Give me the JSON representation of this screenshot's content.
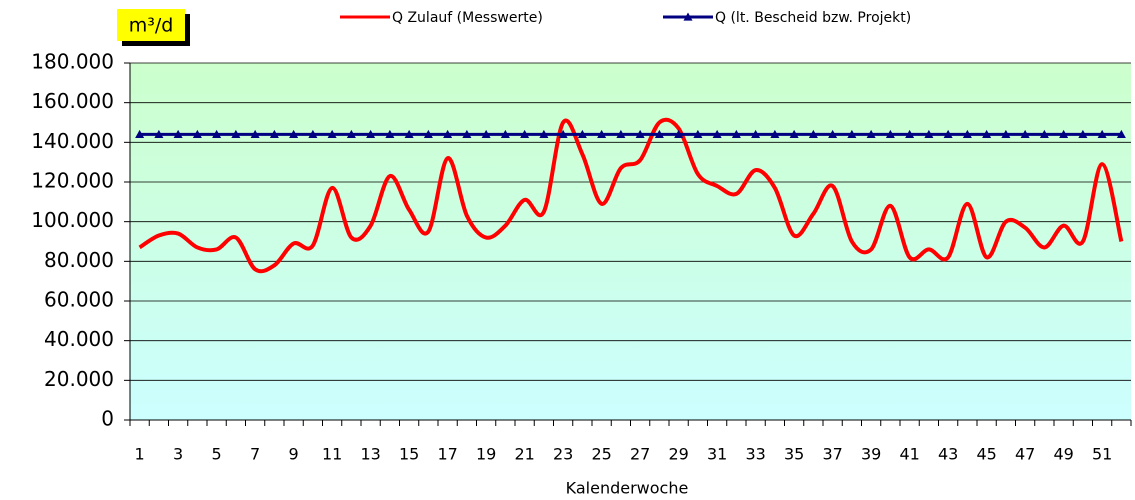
{
  "chart_data": {
    "type": "line",
    "ylabel": "m³/d",
    "xlabel": "Kalenderwoche",
    "x": [
      1,
      2,
      3,
      4,
      5,
      6,
      7,
      8,
      9,
      10,
      11,
      12,
      13,
      14,
      15,
      16,
      17,
      18,
      19,
      20,
      21,
      22,
      23,
      24,
      25,
      26,
      27,
      28,
      29,
      30,
      31,
      32,
      33,
      34,
      35,
      36,
      37,
      38,
      39,
      40,
      41,
      42,
      43,
      44,
      45,
      46,
      47,
      48,
      49,
      50,
      51,
      52
    ],
    "xlim": [
      0.5,
      52.5
    ],
    "xticks": [
      1,
      3,
      5,
      7,
      9,
      11,
      13,
      15,
      17,
      19,
      21,
      23,
      25,
      27,
      29,
      31,
      33,
      35,
      37,
      39,
      41,
      43,
      45,
      47,
      49,
      51
    ],
    "ylim": [
      0,
      180000
    ],
    "yticks": [
      0,
      {
        "value": 20000,
        "label": "20.000"
      },
      {
        "value": 40000,
        "label": "40.000"
      },
      {
        "value": 60000,
        "label": "60.000"
      },
      {
        "value": 80000,
        "label": "80.000"
      },
      {
        "value": 100000,
        "label": "100.000"
      },
      {
        "value": 120000,
        "label": "120.000"
      },
      {
        "value": 140000,
        "label": "140.000"
      },
      {
        "value": 160000,
        "label": "160.000"
      },
      {
        "value": 180000,
        "label": "180.000"
      }
    ],
    "grid": true,
    "series": [
      {
        "name": "Q Zulauf (Messwerte)",
        "color": "#ff0000",
        "smooth": true,
        "values": [
          87000,
          93000,
          94000,
          87000,
          86000,
          92000,
          76000,
          78000,
          89000,
          88000,
          117000,
          92000,
          98000,
          123000,
          106000,
          95000,
          132000,
          103000,
          92000,
          98000,
          111000,
          105000,
          150000,
          134000,
          109000,
          127000,
          131000,
          150000,
          147000,
          124000,
          118000,
          114000,
          126000,
          117000,
          93000,
          104000,
          118000,
          90000,
          86000,
          108000,
          82000,
          86000,
          82000,
          109000,
          82000,
          100000,
          97000,
          87000,
          98000,
          90000,
          129000,
          90000
        ]
      },
      {
        "name": "Q (lt. Bescheid bzw. Projekt)",
        "color": "#000080",
        "marker": "triangle",
        "values": [
          144000,
          144000,
          144000,
          144000,
          144000,
          144000,
          144000,
          144000,
          144000,
          144000,
          144000,
          144000,
          144000,
          144000,
          144000,
          144000,
          144000,
          144000,
          144000,
          144000,
          144000,
          144000,
          144000,
          144000,
          144000,
          144000,
          144000,
          144000,
          144000,
          144000,
          144000,
          144000,
          144000,
          144000,
          144000,
          144000,
          144000,
          144000,
          144000,
          144000,
          144000,
          144000,
          144000,
          144000,
          144000,
          144000,
          144000,
          144000,
          144000,
          144000,
          144000,
          144000
        ]
      }
    ]
  }
}
